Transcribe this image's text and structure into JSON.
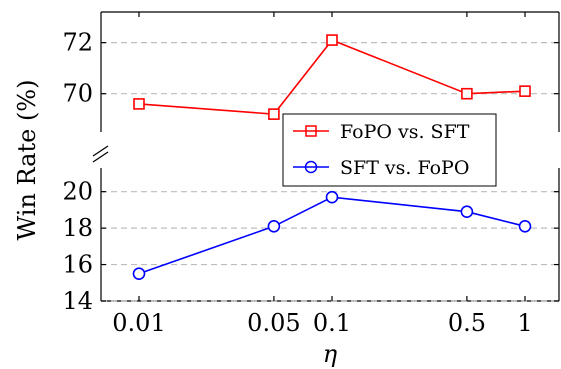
{
  "chart_data": {
    "type": "line",
    "x_tick_labels": [
      "0.01",
      "0.05",
      "0.1",
      "0.5",
      "1"
    ],
    "x_positions": [
      0.01,
      0.05,
      0.1,
      0.5,
      1
    ],
    "x_scale": "log",
    "xlabel": "η",
    "ylabel": "Win Rate (%)",
    "broken_y_axis": true,
    "upper_panel": {
      "ylim": [
        68.5,
        73.2
      ],
      "yticks": [
        70,
        72
      ],
      "series": [
        {
          "name": "FoPO vs. SFT",
          "color": "#ff0000",
          "marker": "square",
          "values": [
            69.6,
            69.2,
            72.1,
            70.0,
            70.1
          ]
        }
      ]
    },
    "lower_panel": {
      "ylim": [
        14,
        21.3
      ],
      "yticks": [
        14,
        16,
        18,
        20
      ],
      "series": [
        {
          "name": "SFT vs. FoPO",
          "color": "#0000ff",
          "marker": "circle",
          "values": [
            15.5,
            18.1,
            19.7,
            18.9,
            18.1
          ]
        }
      ]
    },
    "grid": "horizontal dashed",
    "legend_position": "center-right"
  }
}
